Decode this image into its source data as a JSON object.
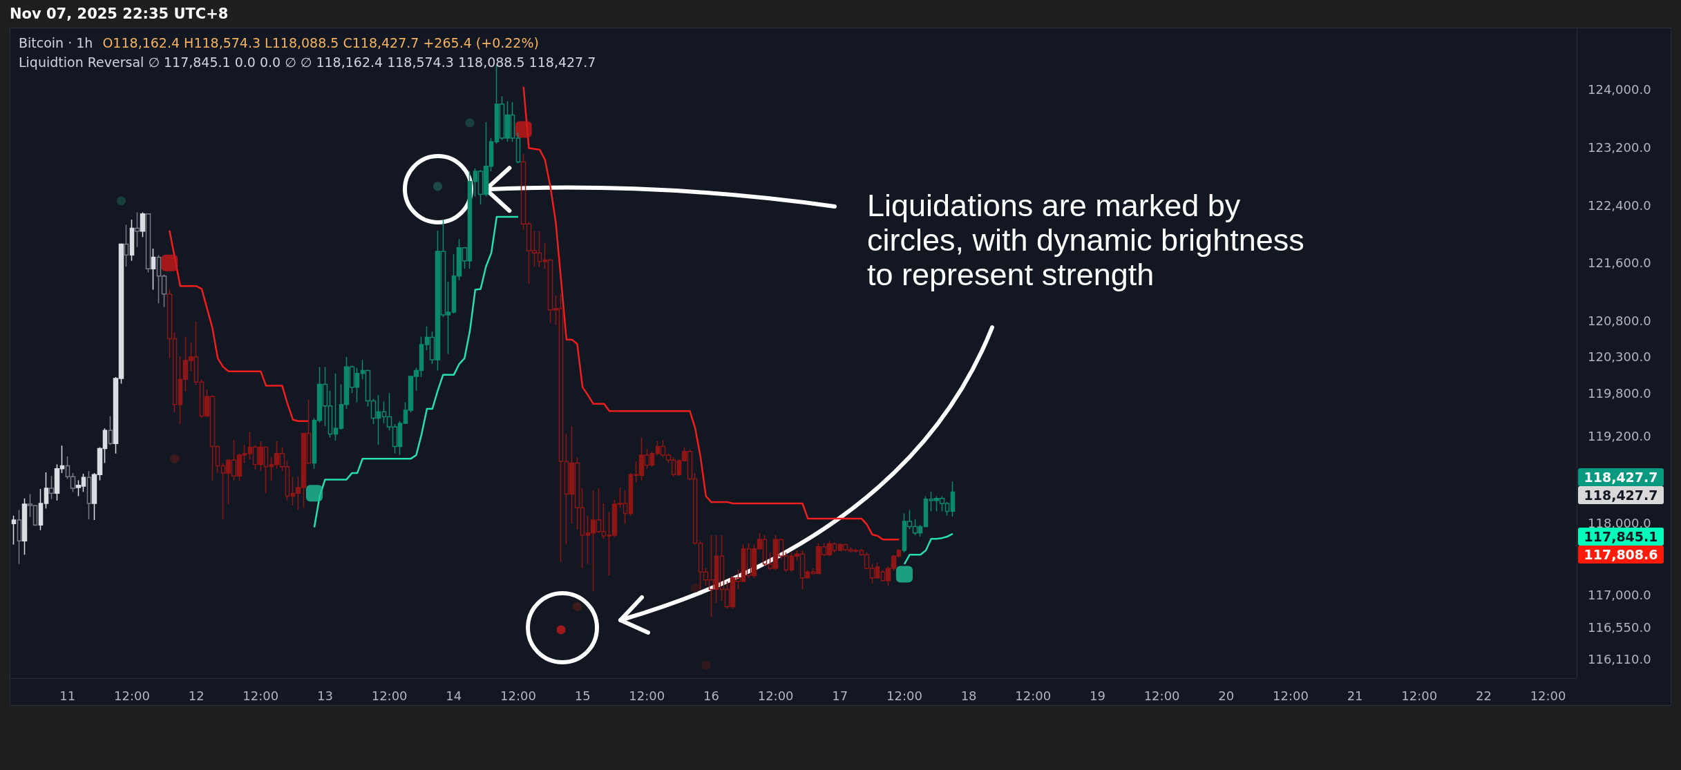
{
  "chart_data": {
    "type": "candlestick",
    "title": "Bitcoin · 1h",
    "subtitle": "O118,162.4 H118,574.3 L118,088.5 C118,427.7 +265.4 (+0.22%)",
    "annotations": [
      "Nov 07, 2025 22:35 UTC+8",
      "Liquidtion Reversal ∅ 117,845.1 0.0 0.0 ∅ ∅ 118,162.4 118,574.3 118,088.5 118,427.7",
      {
        "text": "Liquidations are marked by circles, with dynamic brightness to represent strength",
        "x": "2025-11-14T06:00",
        "y": 122620
      },
      "118,427.7",
      "118,427.7",
      "117,845.1",
      "117,808.6"
    ],
    "xlim": [
      "2025-11-10T13:20",
      "2025-11-22T17:20"
    ],
    "xticks": [
      {
        "value": "2025-11-11T00:00",
        "label": "11"
      },
      {
        "value": "2025-11-11T12:00",
        "label": "12:00"
      },
      {
        "value": "2025-11-12T00:00",
        "label": "12"
      },
      {
        "value": "2025-11-12T12:00",
        "label": "12:00"
      },
      {
        "value": "2025-11-13T00:00",
        "label": "13"
      },
      {
        "value": "2025-11-13T12:00",
        "label": "12:00"
      },
      {
        "value": "2025-11-14T00:00",
        "label": "14"
      },
      {
        "value": "2025-11-14T12:00",
        "label": "12:00"
      },
      {
        "value": "2025-11-15T00:00",
        "label": "15"
      },
      {
        "value": "2025-11-15T12:00",
        "label": "12:00"
      },
      {
        "value": "2025-11-16T00:00",
        "label": "16"
      },
      {
        "value": "2025-11-16T12:00",
        "label": "12:00"
      },
      {
        "value": "2025-11-17T00:00",
        "label": "17"
      },
      {
        "value": "2025-11-17T12:00",
        "label": "12:00"
      },
      {
        "value": "2025-11-18T00:00",
        "label": "18"
      },
      {
        "value": "2025-11-18T12:00",
        "label": "12:00"
      },
      {
        "value": "2025-11-19T00:00",
        "label": "19"
      },
      {
        "value": "2025-11-19T12:00",
        "label": "12:00"
      },
      {
        "value": "2025-11-20T00:00",
        "label": "20"
      },
      {
        "value": "2025-11-20T12:00",
        "label": "12:00"
      },
      {
        "value": "2025-11-21T00:00",
        "label": "21"
      },
      {
        "value": "2025-11-21T12:00",
        "label": "12:00"
      },
      {
        "value": "2025-11-22T00:00",
        "label": "22"
      },
      {
        "value": "2025-11-22T12:00",
        "label": "12:00"
      }
    ],
    "ylim": [
      115850,
      124850
    ],
    "yticks": [
      {
        "value": 124000,
        "label": "124,000.0"
      },
      {
        "value": 123200,
        "label": "123,200.0"
      },
      {
        "value": 122400,
        "label": "122,400.0"
      },
      {
        "value": 121600,
        "label": "121,600.0"
      },
      {
        "value": 120800,
        "label": "120,800.0"
      },
      {
        "value": 120300,
        "label": "120,300.0"
      },
      {
        "value": 119800,
        "label": "119,800.0"
      },
      {
        "value": 119200,
        "label": "119,200.0"
      },
      {
        "value": 118000,
        "label": "118,000.0"
      },
      {
        "value": 117000,
        "label": "117,000.0"
      },
      {
        "value": 116550,
        "label": "116,550.0"
      },
      {
        "value": 116110,
        "label": "116,110.0"
      }
    ],
    "grid": false,
    "series": [
      {
        "color": "#dcdde2",
        "x": [
          "2025-11-10T14:00",
          "2025-11-10T16:00",
          "2025-11-10T19:00",
          "2025-11-10T20:00",
          "2025-11-10T22:00",
          "2025-11-10T23:00",
          "2025-11-11T02:00",
          "2025-11-11T03:00",
          "2025-11-11T05:00",
          "2025-11-11T06:00",
          "2025-11-11T07:00",
          "2025-11-11T09:00",
          "2025-11-11T10:00",
          "2025-11-11T12:00",
          "2025-11-11T14:00",
          "2025-11-11T16:00"
        ],
        "ohlc": [
          [
            117990,
            118100,
            117700,
            118040
          ],
          [
            117750,
            118340,
            117560,
            118260
          ],
          [
            117970,
            118470,
            117900,
            118270
          ],
          [
            118270,
            118700,
            118200,
            118480
          ],
          [
            118410,
            118810,
            118310,
            118750
          ],
          [
            118750,
            119070,
            118690,
            118790
          ],
          [
            118490,
            118590,
            118370,
            118520
          ],
          [
            118510,
            118680,
            118430,
            118630
          ],
          [
            118270,
            118690,
            118040,
            118670
          ],
          [
            118670,
            119050,
            118590,
            119030
          ],
          [
            119030,
            119310,
            118830,
            119280
          ],
          [
            119100,
            120020,
            118960,
            120000
          ],
          [
            120000,
            121870,
            119930,
            121860
          ],
          [
            121710,
            122200,
            121630,
            122080
          ],
          [
            122040,
            122300,
            121960,
            122280
          ],
          [
            121520,
            121800,
            121230,
            121680
          ]
        ]
      },
      {
        "color": "#787b86",
        "x": [
          "2025-11-10T15:00",
          "2025-11-10T17:00",
          "2025-11-10T18:00",
          "2025-11-10T21:00",
          "2025-11-11T00:00",
          "2025-11-11T01:00",
          "2025-11-11T04:00",
          "2025-11-11T08:00",
          "2025-11-11T11:00",
          "2025-11-11T13:00",
          "2025-11-11T15:00",
          "2025-11-11T17:00",
          "2025-11-11T18:00"
        ],
        "ohlc": [
          [
            118040,
            118180,
            117430,
            117750
          ],
          [
            118260,
            118400,
            118080,
            118240
          ],
          [
            118240,
            118240,
            117960,
            117970
          ],
          [
            118480,
            118650,
            118330,
            118410
          ],
          [
            118790,
            118920,
            118610,
            118640
          ],
          [
            118640,
            118690,
            118430,
            118480
          ],
          [
            118630,
            118720,
            118050,
            118270
          ],
          [
            119280,
            119480,
            119080,
            119100
          ],
          [
            121860,
            122130,
            121550,
            121710
          ],
          [
            122080,
            122300,
            121820,
            122040
          ],
          [
            122280,
            122280,
            121470,
            121520
          ],
          [
            121680,
            121710,
            121040,
            121420
          ],
          [
            121420,
            121440,
            120990,
            121170
          ]
        ]
      },
      {
        "color": "#8f1616",
        "x": [
          "2025-11-11T19:00",
          "2025-11-11T20:00",
          "2025-11-11T21:00",
          "2025-11-11T22:00",
          "2025-11-11T23:00",
          "2025-11-12T00:00",
          "2025-11-12T01:00",
          "2025-11-12T02:00",
          "2025-11-12T03:00",
          "2025-11-12T04:00",
          "2025-11-12T05:00",
          "2025-11-12T06:00",
          "2025-11-12T07:00",
          "2025-11-12T08:00",
          "2025-11-12T09:00",
          "2025-11-12T10:00",
          "2025-11-12T11:00",
          "2025-11-12T12:00",
          "2025-11-12T13:00",
          "2025-11-12T14:00",
          "2025-11-12T15:00",
          "2025-11-12T16:00",
          "2025-11-12T17:00",
          "2025-11-12T18:00",
          "2025-11-12T19:00",
          "2025-11-12T20:00",
          "2025-11-12T21:00",
          "2025-11-14T13:00",
          "2025-11-14T14:00",
          "2025-11-14T15:00",
          "2025-11-14T16:00",
          "2025-11-14T17:00",
          "2025-11-14T18:00",
          "2025-11-14T19:00",
          "2025-11-14T20:00",
          "2025-11-14T21:00",
          "2025-11-14T22:00",
          "2025-11-14T23:00",
          "2025-11-15T00:00",
          "2025-11-15T01:00",
          "2025-11-15T02:00",
          "2025-11-15T03:00",
          "2025-11-15T04:00",
          "2025-11-15T05:00",
          "2025-11-15T06:00",
          "2025-11-15T07:00",
          "2025-11-15T08:00",
          "2025-11-15T09:00",
          "2025-11-15T10:00",
          "2025-11-15T11:00",
          "2025-11-15T12:00",
          "2025-11-15T13:00",
          "2025-11-15T14:00",
          "2025-11-15T15:00",
          "2025-11-15T16:00",
          "2025-11-15T17:00",
          "2025-11-15T18:00",
          "2025-11-15T19:00",
          "2025-11-15T20:00",
          "2025-11-15T21:00",
          "2025-11-15T22:00",
          "2025-11-15T23:00",
          "2025-11-16T00:00",
          "2025-11-16T01:00",
          "2025-11-16T02:00",
          "2025-11-16T03:00",
          "2025-11-16T04:00",
          "2025-11-16T05:00",
          "2025-11-16T06:00",
          "2025-11-16T07:00",
          "2025-11-16T08:00",
          "2025-11-16T09:00",
          "2025-11-16T10:00",
          "2025-11-16T11:00",
          "2025-11-16T12:00",
          "2025-11-16T13:00",
          "2025-11-16T14:00",
          "2025-11-16T15:00",
          "2025-11-16T16:00",
          "2025-11-16T17:00",
          "2025-11-16T18:00",
          "2025-11-16T19:00",
          "2025-11-16T20:00",
          "2025-11-16T21:00",
          "2025-11-16T22:00",
          "2025-11-16T23:00",
          "2025-11-17T00:00",
          "2025-11-17T01:00",
          "2025-11-17T02:00",
          "2025-11-17T03:00",
          "2025-11-17T04:00",
          "2025-11-17T05:00",
          "2025-11-17T06:00",
          "2025-11-17T07:00",
          "2025-11-17T08:00",
          "2025-11-17T09:00",
          "2025-11-17T10:00",
          "2025-11-17T11:00"
        ],
        "ohlc": [
          [
            121170,
            121230,
            120280,
            120550
          ],
          [
            120550,
            120640,
            119530,
            119640
          ],
          [
            119640,
            120310,
            119370,
            119990
          ],
          [
            119990,
            120580,
            119820,
            120250
          ],
          [
            120250,
            120500,
            120100,
            120300
          ],
          [
            120300,
            120790,
            119910,
            119950
          ],
          [
            119950,
            119990,
            119450,
            119480
          ],
          [
            119480,
            119850,
            119480,
            119750
          ],
          [
            119750,
            119770,
            118590,
            119060
          ],
          [
            119060,
            119070,
            118690,
            118790
          ],
          [
            118790,
            118830,
            118050,
            118690
          ],
          [
            118690,
            118880,
            118260,
            118870
          ],
          [
            118870,
            119150,
            118590,
            118650
          ],
          [
            118650,
            118960,
            118580,
            118940
          ],
          [
            118940,
            119080,
            118830,
            118960
          ],
          [
            118960,
            119260,
            118880,
            119050
          ],
          [
            119050,
            119080,
            118740,
            118810
          ],
          [
            118810,
            119130,
            118720,
            119050
          ],
          [
            119050,
            119050,
            118410,
            118780
          ],
          [
            118780,
            118910,
            118590,
            118810
          ],
          [
            118810,
            119130,
            118750,
            118960
          ],
          [
            118960,
            119050,
            118720,
            118780
          ],
          [
            118780,
            118860,
            118310,
            118370
          ],
          [
            118370,
            118640,
            118240,
            118410
          ],
          [
            118410,
            118640,
            118180,
            118490
          ],
          [
            118490,
            119240,
            118210,
            119240
          ],
          [
            119240,
            119710,
            118810,
            118830
          ],
          [
            123000,
            123110,
            122060,
            122140
          ],
          [
            122140,
            122170,
            121310,
            121770
          ],
          [
            121770,
            122040,
            121550,
            121740
          ],
          [
            121740,
            122040,
            121540,
            121620
          ],
          [
            121620,
            121880,
            121520,
            121640
          ],
          [
            121640,
            121660,
            120770,
            120950
          ],
          [
            120950,
            121150,
            120740,
            120970
          ],
          [
            120970,
            121170,
            117460,
            118850
          ],
          [
            118850,
            119230,
            117700,
            118400
          ],
          [
            118400,
            119340,
            117990,
            118830
          ],
          [
            118830,
            118910,
            117910,
            118210
          ],
          [
            118210,
            118480,
            117370,
            117830
          ],
          [
            117830,
            118100,
            117430,
            117860
          ],
          [
            117860,
            118450,
            117050,
            118040
          ],
          [
            118040,
            118480,
            117860,
            117880
          ],
          [
            117880,
            118270,
            117780,
            117820
          ],
          [
            117820,
            118150,
            117270,
            117830
          ],
          [
            117830,
            118320,
            117800,
            118260
          ],
          [
            118260,
            118490,
            118210,
            118270
          ],
          [
            118270,
            118450,
            117990,
            118130
          ],
          [
            118130,
            118690,
            118100,
            118670
          ],
          [
            118670,
            118850,
            118560,
            118660
          ],
          [
            118660,
            119180,
            118590,
            118940
          ],
          [
            118940,
            119020,
            118750,
            118800
          ],
          [
            118800,
            118990,
            118780,
            118960
          ],
          [
            118960,
            119130,
            118940,
            119060
          ],
          [
            119060,
            119150,
            118910,
            118940
          ],
          [
            118940,
            118960,
            118830,
            118870
          ],
          [
            118870,
            118910,
            118640,
            118670
          ],
          [
            118670,
            118880,
            118650,
            118860
          ],
          [
            118860,
            119050,
            118850,
            118990
          ],
          [
            118990,
            119020,
            118590,
            118610
          ],
          [
            118610,
            118690,
            117700,
            117720
          ],
          [
            117720,
            117750,
            117080,
            117320
          ],
          [
            117320,
            117370,
            117130,
            117210
          ],
          [
            117210,
            117830,
            116700,
            117080
          ],
          [
            117080,
            117830,
            116890,
            117540
          ],
          [
            117540,
            117830,
            116920,
            117080
          ],
          [
            117080,
            117190,
            116810,
            116840
          ],
          [
            116840,
            117270,
            116810,
            117240
          ],
          [
            117240,
            117350,
            117080,
            117190
          ],
          [
            117190,
            117700,
            117190,
            117640
          ],
          [
            117640,
            117720,
            117240,
            117270
          ],
          [
            117270,
            117700,
            117240,
            117640
          ],
          [
            117640,
            117860,
            117640,
            117770
          ],
          [
            117770,
            117830,
            117400,
            117430
          ],
          [
            117430,
            117590,
            117350,
            117370
          ],
          [
            117370,
            117830,
            117350,
            117770
          ],
          [
            117770,
            117780,
            117500,
            117540
          ],
          [
            117540,
            117590,
            117320,
            117350
          ],
          [
            117350,
            117590,
            117320,
            117540
          ],
          [
            117540,
            117620,
            117480,
            117570
          ],
          [
            117570,
            117620,
            117080,
            117240
          ],
          [
            117240,
            117350,
            117230,
            117320
          ],
          [
            117320,
            117370,
            117290,
            117300
          ],
          [
            117300,
            117720,
            117290,
            117670
          ],
          [
            117670,
            117720,
            117540,
            117560
          ],
          [
            117560,
            117750,
            117540,
            117710
          ],
          [
            117710,
            117730,
            117590,
            117620
          ],
          [
            117620,
            117720,
            117610,
            117700
          ],
          [
            117700,
            117710,
            117610,
            117630
          ],
          [
            117630,
            117660,
            117590,
            117610
          ],
          [
            117610,
            117650,
            117590,
            117620
          ],
          [
            117620,
            117640,
            117540,
            117560
          ],
          [
            117560,
            117590,
            117360,
            117370
          ],
          [
            117370,
            117430,
            117160,
            117240
          ],
          [
            117240,
            117450,
            117230,
            117390
          ],
          [
            117320,
            117350,
            117190,
            117200
          ],
          [
            117200,
            117400,
            117130,
            117370
          ],
          [
            117370,
            117560,
            117340,
            117540
          ],
          [
            117540,
            117640,
            117520,
            117620
          ]
        ]
      },
      {
        "color": "#0b8a6b",
        "x": [
          "2025-11-12T22:00",
          "2025-11-12T23:00",
          "2025-11-13T00:00",
          "2025-11-13T01:00",
          "2025-11-13T02:00",
          "2025-11-13T03:00",
          "2025-11-13T04:00",
          "2025-11-13T05:00",
          "2025-11-13T06:00",
          "2025-11-13T07:00",
          "2025-11-13T08:00",
          "2025-11-13T09:00",
          "2025-11-13T10:00",
          "2025-11-13T11:00",
          "2025-11-13T12:00",
          "2025-11-13T13:00",
          "2025-11-13T14:00",
          "2025-11-13T15:00",
          "2025-11-13T16:00",
          "2025-11-13T17:00",
          "2025-11-13T18:00",
          "2025-11-13T19:00",
          "2025-11-13T20:00",
          "2025-11-13T21:00",
          "2025-11-13T22:00",
          "2025-11-13T23:00",
          "2025-11-14T00:00",
          "2025-11-14T01:00",
          "2025-11-14T02:00",
          "2025-11-14T03:00",
          "2025-11-14T04:00",
          "2025-11-14T05:00",
          "2025-11-14T06:00",
          "2025-11-14T07:00",
          "2025-11-14T08:00",
          "2025-11-14T09:00",
          "2025-11-14T10:00",
          "2025-11-14T11:00",
          "2025-11-14T12:00",
          "2025-11-17T12:00",
          "2025-11-17T13:00",
          "2025-11-17T14:00",
          "2025-11-17T15:00",
          "2025-11-17T16:00",
          "2025-11-17T17:00",
          "2025-11-17T18:00",
          "2025-11-17T19:00",
          "2025-11-17T20:00",
          "2025-11-17T21:00"
        ],
        "ohlc": [
          [
            118830,
            119450,
            118750,
            119420
          ],
          [
            119420,
            120160,
            119390,
            119920
          ],
          [
            119920,
            120160,
            119340,
            119620
          ],
          [
            119620,
            119830,
            119180,
            119230
          ],
          [
            119230,
            120070,
            119140,
            119310
          ],
          [
            119310,
            119920,
            119290,
            119640
          ],
          [
            119640,
            120300,
            119580,
            120160
          ],
          [
            120160,
            120180,
            119800,
            119880
          ],
          [
            119880,
            120150,
            119670,
            120070
          ],
          [
            120070,
            120260,
            119990,
            120110
          ],
          [
            120110,
            120120,
            119610,
            119690
          ],
          [
            119690,
            119720,
            119370,
            119450
          ],
          [
            119450,
            119770,
            119080,
            119540
          ],
          [
            119540,
            119680,
            119380,
            119470
          ],
          [
            119470,
            119800,
            119280,
            119330
          ],
          [
            119330,
            119370,
            118960,
            119060
          ],
          [
            119060,
            119410,
            118940,
            119380
          ],
          [
            119380,
            119670,
            119370,
            119560
          ],
          [
            119560,
            120040,
            119530,
            120030
          ],
          [
            120030,
            120150,
            119830,
            120110
          ],
          [
            120110,
            120580,
            120020,
            120470
          ],
          [
            120470,
            120720,
            120390,
            120570
          ],
          [
            120570,
            120650,
            120200,
            120260
          ],
          [
            120260,
            122050,
            120110,
            121760
          ],
          [
            121760,
            122200,
            120850,
            120880
          ],
          [
            120880,
            121340,
            120340,
            120920
          ],
          [
            120920,
            121720,
            120900,
            121420
          ],
          [
            121420,
            121930,
            121360,
            121810
          ],
          [
            121810,
            121820,
            121520,
            121630
          ],
          [
            121630,
            122870,
            121520,
            122730
          ],
          [
            122730,
            122910,
            122520,
            122870
          ],
          [
            122870,
            122890,
            122410,
            122550
          ],
          [
            122550,
            123550,
            122520,
            122940
          ],
          [
            122940,
            123330,
            122870,
            123280
          ],
          [
            123280,
            124340,
            123250,
            123800
          ],
          [
            123800,
            123910,
            123300,
            123330
          ],
          [
            123330,
            123840,
            123280,
            123650
          ],
          [
            123650,
            123830,
            123280,
            123330
          ],
          [
            123330,
            123410,
            122980,
            123000
          ],
          [
            117620,
            118130,
            117590,
            118020
          ],
          [
            118020,
            118180,
            117910,
            117950
          ],
          [
            117950,
            118050,
            117830,
            117860
          ],
          [
            117860,
            117970,
            117810,
            117950
          ],
          [
            117950,
            118370,
            117940,
            118330
          ],
          [
            118330,
            118430,
            118160,
            118310
          ],
          [
            118310,
            118370,
            118160,
            118340
          ],
          [
            118340,
            118370,
            118160,
            118270
          ],
          [
            118270,
            118290,
            118100,
            118160
          ],
          [
            118162.4,
            118574.3,
            118088.5,
            118427.7
          ]
        ]
      },
      {
        "type": "line",
        "color": "#f01e1e",
        "x": [
          "2025-11-11T19:00",
          "2025-11-11T21:00",
          "2025-11-12T00:00",
          "2025-11-12T01:00",
          "2025-11-12T03:00",
          "2025-11-12T04:00",
          "2025-11-12T05:00",
          "2025-11-12T06:00",
          "2025-11-12T12:00",
          "2025-11-12T13:00",
          "2025-11-12T16:00",
          "2025-11-12T17:00",
          "2025-11-12T18:00",
          "2025-11-12T19:00",
          "2025-11-12T21:00"
        ],
        "values": [
          122050,
          121280,
          121280,
          121240,
          120700,
          120280,
          120160,
          120100,
          120100,
          119900,
          119900,
          119650,
          119430,
          119410,
          119410
        ]
      },
      {
        "type": "line",
        "color": "#27e0b0",
        "x": [
          "2025-11-12T22:00",
          "2025-11-12T23:00",
          "2025-11-13T00:00",
          "2025-11-13T04:00",
          "2025-11-13T05:00",
          "2025-11-13T06:00",
          "2025-11-13T07:00",
          "2025-11-13T16:00",
          "2025-11-13T17:00",
          "2025-11-13T18:00",
          "2025-11-13T19:00",
          "2025-11-13T20:00",
          "2025-11-13T21:00",
          "2025-11-13T22:00",
          "2025-11-14T00:00",
          "2025-11-14T01:00",
          "2025-11-14T02:00",
          "2025-11-14T03:00",
          "2025-11-14T04:00",
          "2025-11-14T05:00",
          "2025-11-14T06:00",
          "2025-11-14T07:00",
          "2025-11-14T08:00",
          "2025-11-14T12:00"
        ],
        "values": [
          117940,
          118370,
          118600,
          118600,
          118690,
          118690,
          118890,
          118890,
          118940,
          119230,
          119580,
          119580,
          119830,
          120050,
          120050,
          120200,
          120280,
          120660,
          121230,
          121240,
          121550,
          121740,
          122240,
          122240
        ]
      },
      {
        "type": "line",
        "color": "#f01e1e",
        "x": [
          "2025-11-14T13:00",
          "2025-11-14T14:00",
          "2025-11-14T16:00",
          "2025-11-14T17:00",
          "2025-11-14T18:00",
          "2025-11-14T19:00",
          "2025-11-14T20:00",
          "2025-11-14T21:00",
          "2025-11-14T22:00",
          "2025-11-14T23:00",
          "2025-11-15T00:00",
          "2025-11-15T01:00",
          "2025-11-15T02:00",
          "2025-11-15T04:00",
          "2025-11-15T05:00",
          "2025-11-15T20:00",
          "2025-11-15T21:00",
          "2025-11-15T22:00",
          "2025-11-15T23:00",
          "2025-11-16T00:00",
          "2025-11-16T03:00",
          "2025-11-16T04:00",
          "2025-11-16T17:00",
          "2025-11-16T18:00",
          "2025-11-17T04:00",
          "2025-11-17T05:00",
          "2025-11-17T06:00",
          "2025-11-17T07:00",
          "2025-11-17T08:00",
          "2025-11-17T11:00"
        ],
        "values": [
          124040,
          123190,
          123170,
          123030,
          122660,
          122170,
          121360,
          120540,
          120540,
          120480,
          119880,
          119770,
          119650,
          119650,
          119550,
          119550,
          119310,
          118910,
          118370,
          118290,
          118290,
          118270,
          118270,
          118060,
          118060,
          117980,
          117840,
          117820,
          117770,
          117770
        ]
      },
      {
        "type": "line",
        "color": "#27e0b0",
        "x": [
          "2025-11-17T12:00",
          "2025-11-17T13:00",
          "2025-11-17T15:00",
          "2025-11-17T16:00",
          "2025-11-17T17:00",
          "2025-11-17T18:00",
          "2025-11-17T19:00",
          "2025-11-17T20:00",
          "2025-11-17T21:00"
        ],
        "values": [
          117430,
          117560,
          117560,
          117620,
          117780,
          117780,
          117790,
          117810,
          117850
        ]
      },
      {
        "type": "scatter",
        "marker": "circle",
        "x": [
          "2025-11-11T10:00",
          "2025-11-11T20:00",
          "2025-11-13T21:00",
          "2025-11-14T03:00",
          "2025-11-14T20:00",
          "2025-11-14T23:00",
          "2025-11-15T21:00",
          "2025-11-15T23:00"
        ],
        "values": [
          122460,
          118890,
          122660,
          123540,
          116520,
          116840,
          117100,
          116030
        ],
        "colors": [
          "#1a4a42",
          "#4a1c1c",
          "#1f5a4f",
          "#1a4a42",
          "#c21a1a",
          "#4a1c1c",
          "#3a1a1a",
          "#3a1a1a"
        ]
      },
      {
        "type": "scatter",
        "marker": "square",
        "color": "#c8191a",
        "x": [
          "2025-11-11T19:00",
          "2025-11-14T13:00"
        ],
        "values": [
          121600,
          123450
        ]
      },
      {
        "type": "scatter",
        "marker": "square",
        "color": "#1fc19a",
        "x": [
          "2025-11-12T22:00",
          "2025-11-17T12:00"
        ],
        "values": [
          118410,
          117290
        ]
      }
    ]
  }
}
